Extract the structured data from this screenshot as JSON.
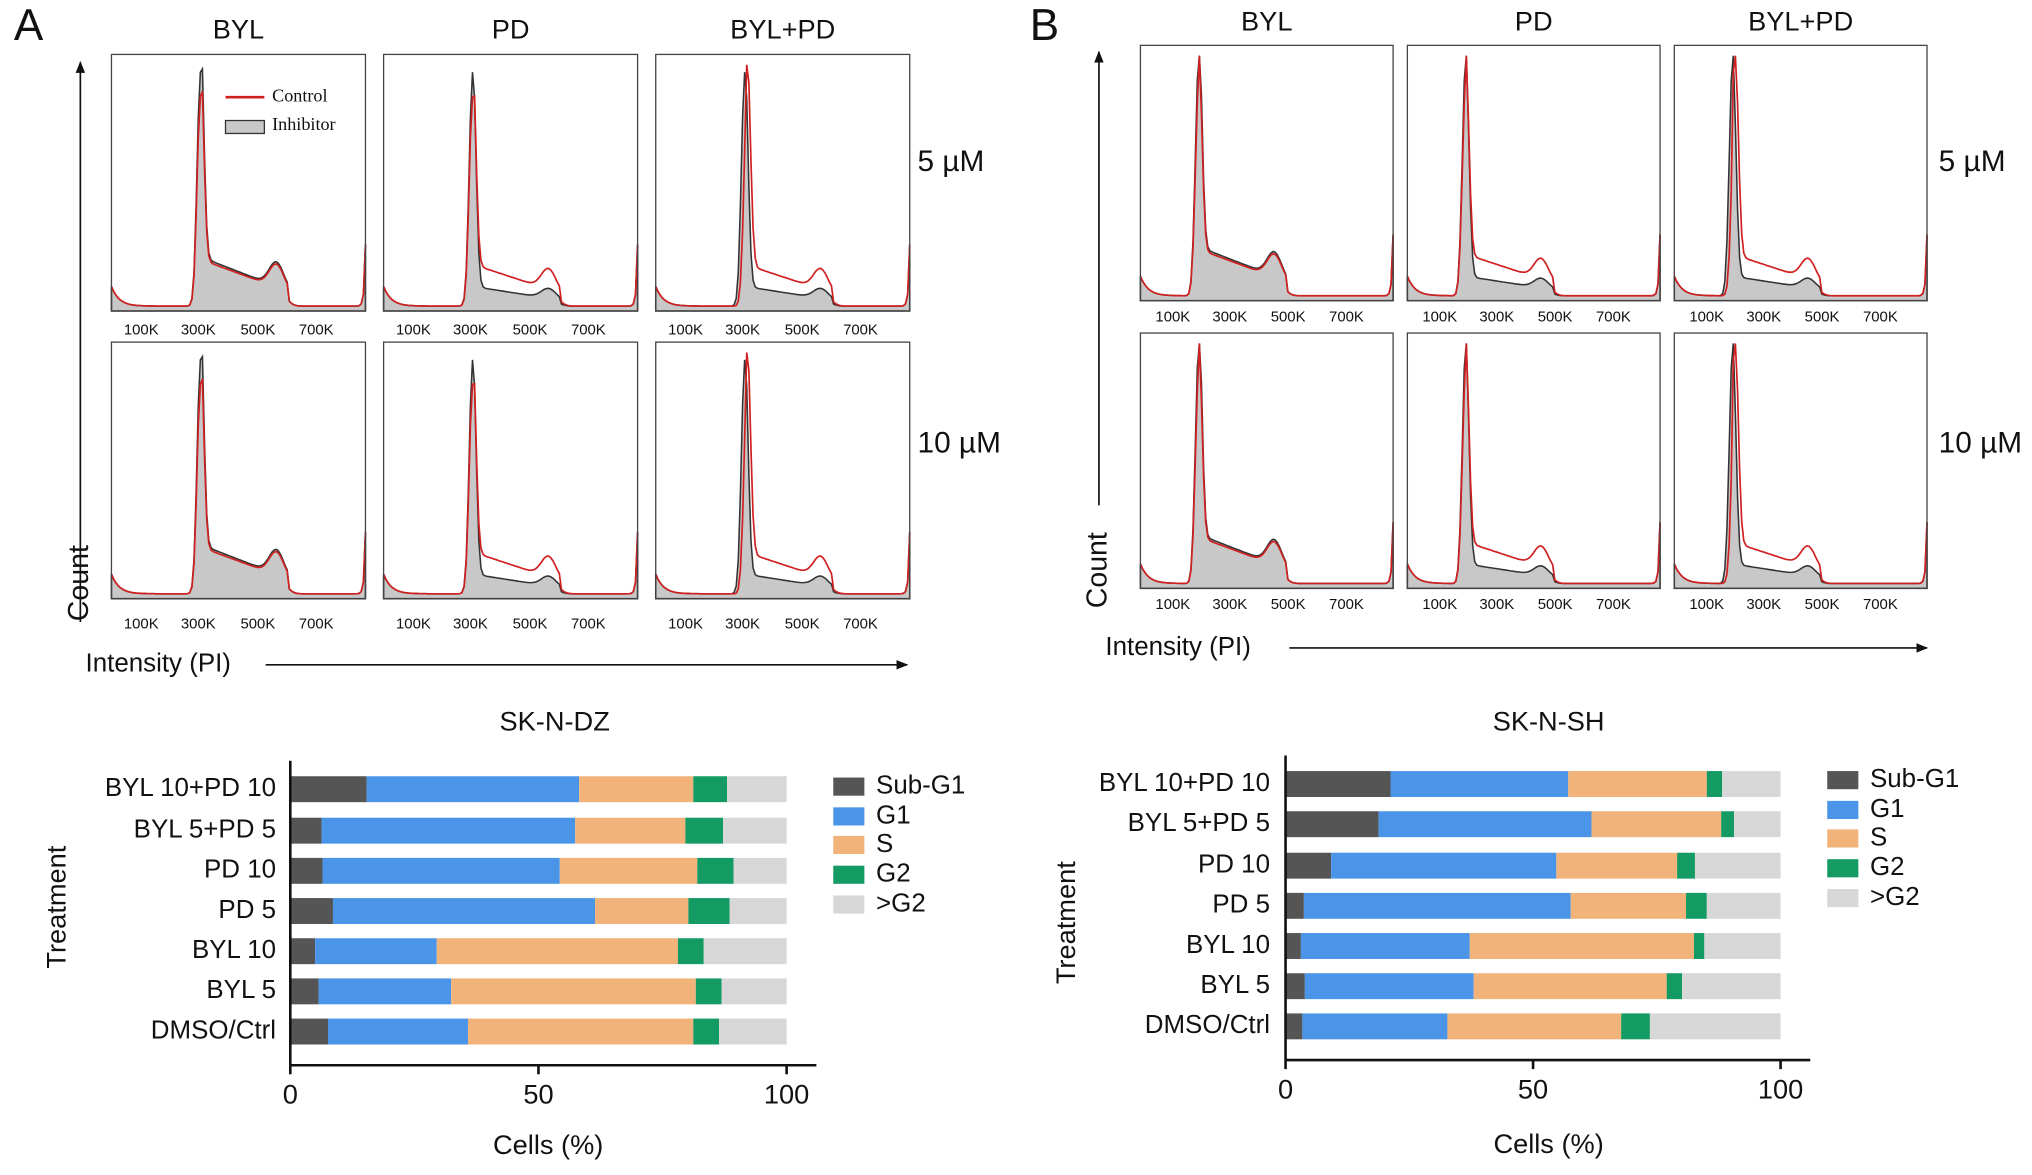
{
  "panels": [
    {
      "label": "A",
      "columns": [
        "BYL",
        "PD",
        "BYL+PD"
      ],
      "rows": [
        "5 µM",
        "10 µM"
      ],
      "tick_labels": [
        "100K",
        "300K",
        "500K",
        "700K"
      ],
      "legend": [
        "Control",
        "Inhibitor"
      ],
      "y_label": "Count",
      "x_label": "Intensity (PI)"
    },
    {
      "label": "B",
      "columns": [
        "BYL",
        "PD",
        "BYL+PD"
      ],
      "rows": [
        "5 µM",
        "10 µM"
      ],
      "tick_labels": [
        "100K",
        "300K",
        "500K",
        "700K"
      ],
      "y_label": "Count",
      "x_label": "Intensity (PI)"
    }
  ],
  "chart_data": [
    {
      "type": "bar",
      "orientation": "horizontal",
      "stacked": true,
      "title": "SK-N-DZ",
      "x_label": "Cells (%)",
      "y_label": "Treatment",
      "categories": [
        "BYL 10+PD 10",
        "BYL 5+PD 5",
        "PD 10",
        "PD 5",
        "BYL 10",
        "BYL 5",
        "DMSO/Ctrl"
      ],
      "xlim": [
        0,
        106
      ],
      "xticks": [
        0,
        50,
        100
      ],
      "series": [
        {
          "name": "Sub-G1",
          "color": "#555555",
          "values": [
            15.4,
            6.3,
            6.5,
            8.6,
            5.0,
            5.7,
            7.6
          ]
        },
        {
          "name": "G1",
          "color": "#4b95e9",
          "values": [
            42.8,
            51.1,
            47.8,
            52.8,
            24.5,
            26.7,
            28.2
          ]
        },
        {
          "name": "S",
          "color": "#f2b37a",
          "values": [
            23.0,
            22.2,
            27.7,
            18.8,
            48.6,
            49.3,
            45.4
          ]
        },
        {
          "name": "G2",
          "color": "#149a63",
          "values": [
            6.8,
            7.6,
            7.3,
            8.3,
            5.2,
            5.2,
            5.2
          ]
        },
        {
          "name": ">G2",
          "color": "#d7d7d7",
          "values": [
            12.0,
            12.8,
            10.7,
            11.5,
            16.7,
            13.1,
            13.6
          ]
        }
      ]
    },
    {
      "type": "bar",
      "orientation": "horizontal",
      "stacked": true,
      "title": "SK-N-SH",
      "x_label": "Cells (%)",
      "y_label": "Treatment",
      "categories": [
        "BYL 10+PD 10",
        "BYL 5+PD 5",
        "PD 10",
        "PD 5",
        "BYL 10",
        "BYL 5",
        "DMSO/Ctrl"
      ],
      "xlim": [
        0,
        106
      ],
      "xticks": [
        0,
        50,
        100
      ],
      "series": [
        {
          "name": "Sub-G1",
          "color": "#555555",
          "values": [
            21.2,
            18.8,
            9.2,
            3.7,
            3.1,
            3.9,
            3.4
          ]
        },
        {
          "name": "G1",
          "color": "#4b95e9",
          "values": [
            35.9,
            43.0,
            45.5,
            53.9,
            34.1,
            34.1,
            29.3
          ]
        },
        {
          "name": "S",
          "color": "#f2b37a",
          "values": [
            28.0,
            26.2,
            24.4,
            23.3,
            45.3,
            39.0,
            35.1
          ]
        },
        {
          "name": "G2",
          "color": "#149a63",
          "values": [
            3.1,
            2.6,
            3.6,
            4.2,
            2.1,
            3.1,
            5.8
          ]
        },
        {
          "name": ">G2",
          "color": "#d7d7d7",
          "values": [
            11.8,
            9.4,
            17.3,
            14.9,
            15.4,
            19.9,
            26.4
          ]
        }
      ]
    }
  ]
}
